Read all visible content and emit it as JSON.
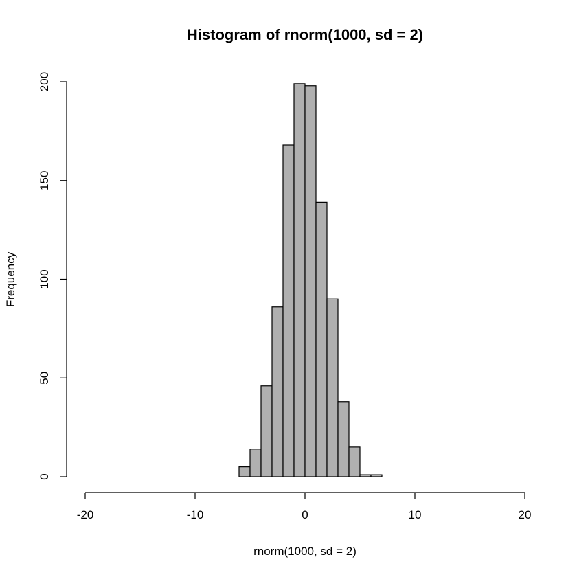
{
  "chart_data": {
    "type": "bar",
    "subtype": "histogram",
    "title": "Histogram of rnorm(1000, sd = 2)",
    "xlabel": "rnorm(1000, sd = 2)",
    "ylabel": "Frequency",
    "xlim": [
      -20,
      20
    ],
    "ylim": [
      0,
      200
    ],
    "x_ticks": [
      -20,
      -10,
      0,
      10,
      20
    ],
    "y_ticks": [
      0,
      50,
      100,
      150,
      200
    ],
    "bin_width": 1,
    "bins": [
      {
        "start": -6,
        "end": -5,
        "count": 5
      },
      {
        "start": -5,
        "end": -4,
        "count": 14
      },
      {
        "start": -4,
        "end": -3,
        "count": 46
      },
      {
        "start": -3,
        "end": -2,
        "count": 86
      },
      {
        "start": -2,
        "end": -1,
        "count": 168
      },
      {
        "start": -1,
        "end": 0,
        "count": 199
      },
      {
        "start": 0,
        "end": 1,
        "count": 198
      },
      {
        "start": 1,
        "end": 2,
        "count": 139
      },
      {
        "start": 2,
        "end": 3,
        "count": 90
      },
      {
        "start": 3,
        "end": 4,
        "count": 38
      },
      {
        "start": 4,
        "end": 5,
        "count": 15
      },
      {
        "start": 5,
        "end": 6,
        "count": 1
      },
      {
        "start": 6,
        "end": 7,
        "count": 1
      }
    ],
    "bar_color": "#b0b0b0",
    "outline_color": "#000000",
    "grid": false,
    "legend": "none"
  }
}
